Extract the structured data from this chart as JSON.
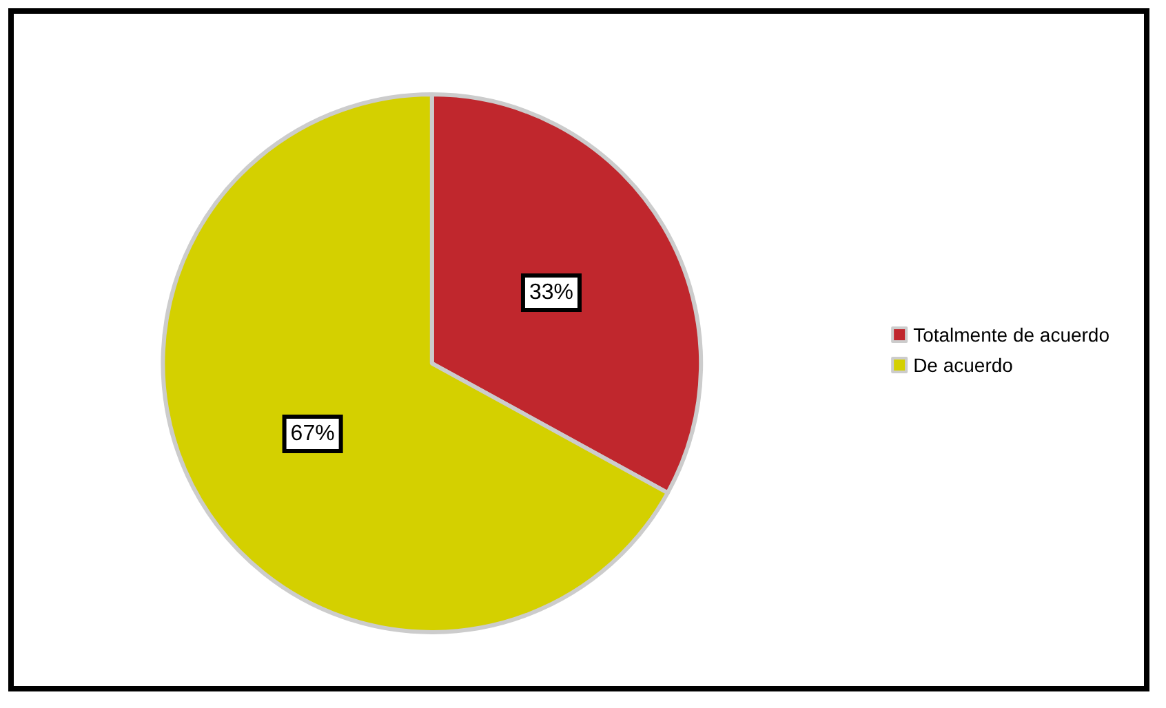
{
  "chart_data": {
    "type": "pie",
    "categories": [
      "Totalmente de acuerdo",
      "De acuerdo"
    ],
    "values": [
      33,
      67
    ],
    "colors": [
      "#c0272d",
      "#d4d000"
    ],
    "value_labels": [
      "33%",
      "67%"
    ],
    "legend": "right"
  }
}
